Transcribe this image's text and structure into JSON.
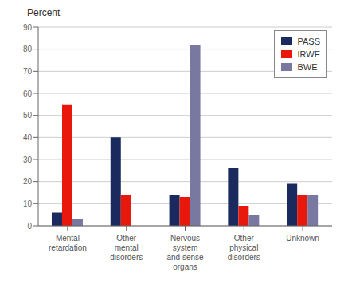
{
  "chart_data": {
    "type": "bar",
    "ylabel": "Percent",
    "categories": [
      "Mental\nretardation",
      "Other\nmental\ndisorders",
      "Nervous\nsystem\nand sense\norgans",
      "Other\nphysical\ndisorders",
      "Unknown"
    ],
    "series": [
      {
        "name": "PASS",
        "color": "#1b2a5e",
        "values": [
          6,
          40,
          14,
          26,
          19
        ]
      },
      {
        "name": "IRWE",
        "color": "#e8180c",
        "values": [
          55,
          14,
          13,
          9,
          14
        ]
      },
      {
        "name": "BWE",
        "color": "#7878a0",
        "values": [
          3,
          0,
          82,
          5,
          14
        ]
      }
    ],
    "ylim": [
      0,
      90
    ],
    "yticks": [
      0,
      10,
      20,
      30,
      40,
      50,
      60,
      70,
      80,
      90
    ],
    "grid": true,
    "legend": "upper right"
  }
}
